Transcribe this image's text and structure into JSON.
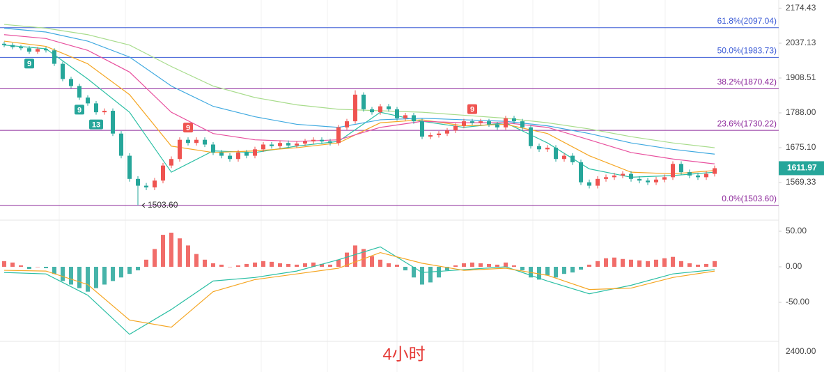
{
  "chart_data": [
    {
      "type": "candlestick",
      "log_scale": true,
      "ylim": [
        1464.5,
        2208.7
      ],
      "yticks": [
        {
          "value": 2174.43,
          "label": "2174.43"
        },
        {
          "value": 2037.13,
          "label": "2037.13"
        },
        {
          "value": 1908.51,
          "label": "1908.51"
        },
        {
          "value": 1788,
          "label": "1788.00"
        },
        {
          "value": 1675.1,
          "label": "1675.10"
        },
        {
          "value": 1569.33,
          "label": "1569.33"
        }
      ],
      "up_color": "#ef5350",
      "down_color": "#26a69a",
      "open": [
        2035,
        2030,
        2022,
        2018,
        2005,
        2015,
        2010,
        1960,
        1905,
        1880,
        1840,
        1820,
        1790,
        1795,
        1720,
        1650,
        1580,
        1560,
        1555,
        1575,
        1620,
        1640,
        1700,
        1690,
        1700,
        1685,
        1660,
        1650,
        1640,
        1660,
        1650,
        1670,
        1685,
        1680,
        1690,
        1682,
        1688,
        1695,
        1700,
        1695,
        1690,
        1740,
        1760,
        1850,
        1800,
        1790,
        1810,
        1800,
        1770,
        1780,
        1760,
        1710,
        1715,
        1720,
        1730,
        1745,
        1760,
        1755,
        1760,
        1750,
        1740,
        1770,
        1760,
        1740,
        1680,
        1670,
        1675,
        1640,
        1650,
        1630,
        1570,
        1560,
        1580,
        1585,
        1590,
        1595,
        1580,
        1575,
        1570,
        1578,
        1585,
        1625,
        1600,
        1590,
        1585,
        1595
      ],
      "high": [
        2043,
        2038,
        2030,
        2026,
        2023,
        2023,
        2018,
        1968,
        1913,
        1888,
        1848,
        1828,
        1803,
        1803,
        1728,
        1658,
        1588,
        1568,
        1583,
        1628,
        1648,
        1708,
        1708,
        1708,
        1708,
        1693,
        1668,
        1658,
        1668,
        1668,
        1678,
        1693,
        1693,
        1698,
        1698,
        1696,
        1703,
        1708,
        1708,
        1703,
        1748,
        1768,
        1865,
        1858,
        1808,
        1818,
        1818,
        1808,
        1788,
        1788,
        1768,
        1723,
        1728,
        1738,
        1753,
        1768,
        1768,
        1768,
        1768,
        1758,
        1778,
        1778,
        1768,
        1748,
        1688,
        1683,
        1683,
        1658,
        1658,
        1638,
        1578,
        1588,
        1593,
        1598,
        1603,
        1603,
        1588,
        1583,
        1586,
        1593,
        1633,
        1633,
        1608,
        1598,
        1603,
        1620
      ],
      "low": [
        2022,
        2014,
        2010,
        1997,
        1997,
        2002,
        1952,
        1897,
        1872,
        1832,
        1812,
        1782,
        1782,
        1712,
        1642,
        1572,
        1503.6,
        1547,
        1547,
        1567,
        1612,
        1632,
        1682,
        1682,
        1677,
        1652,
        1642,
        1632,
        1632,
        1642,
        1642,
        1662,
        1672,
        1672,
        1674,
        1674,
        1680,
        1687,
        1687,
        1682,
        1682,
        1732,
        1752,
        1792,
        1782,
        1782,
        1792,
        1762,
        1762,
        1752,
        1702,
        1702,
        1707,
        1712,
        1722,
        1737,
        1747,
        1747,
        1742,
        1732,
        1732,
        1752,
        1732,
        1672,
        1662,
        1662,
        1632,
        1632,
        1622,
        1562,
        1552,
        1552,
        1572,
        1577,
        1582,
        1572,
        1567,
        1562,
        1562,
        1570,
        1577,
        1592,
        1582,
        1577,
        1577,
        1587
      ],
      "close": [
        2030,
        2022,
        2018,
        2005,
        2015,
        2010,
        1960,
        1905,
        1880,
        1840,
        1820,
        1790,
        1795,
        1720,
        1650,
        1580,
        1560,
        1555,
        1575,
        1620,
        1640,
        1700,
        1690,
        1700,
        1685,
        1660,
        1650,
        1640,
        1660,
        1650,
        1670,
        1685,
        1680,
        1690,
        1682,
        1688,
        1695,
        1700,
        1695,
        1690,
        1740,
        1760,
        1850,
        1800,
        1790,
        1810,
        1800,
        1770,
        1780,
        1760,
        1710,
        1715,
        1720,
        1730,
        1745,
        1760,
        1755,
        1760,
        1750,
        1740,
        1770,
        1760,
        1740,
        1680,
        1670,
        1675,
        1640,
        1650,
        1630,
        1570,
        1560,
        1580,
        1585,
        1590,
        1595,
        1580,
        1575,
        1570,
        1578,
        1585,
        1625,
        1600,
        1590,
        1585,
        1595,
        1611.97
      ],
      "ma_x": [
        0,
        5,
        10,
        15,
        20,
        25,
        30,
        35,
        40,
        45,
        50,
        55,
        60,
        65,
        70,
        75,
        80,
        85
      ],
      "ma_series": [
        {
          "color": "#2bbfa4",
          "values": [
            2030,
            2016,
            1905,
            1790,
            1600,
            1665,
            1660,
            1680,
            1695,
            1790,
            1760,
            1740,
            1755,
            1690,
            1610,
            1585,
            1590,
            1600
          ]
        },
        {
          "color": "#f5a623",
          "values": [
            2045,
            2025,
            1960,
            1850,
            1680,
            1660,
            1665,
            1675,
            1690,
            1755,
            1765,
            1745,
            1750,
            1720,
            1650,
            1600,
            1595,
            1605
          ]
        },
        {
          "color": "#e8509e",
          "values": [
            2070,
            2055,
            2010,
            1930,
            1790,
            1720,
            1700,
            1695,
            1700,
            1740,
            1760,
            1755,
            1755,
            1740,
            1700,
            1660,
            1640,
            1625
          ]
        },
        {
          "color": "#3fa9e0",
          "values": [
            2095,
            2080,
            2045,
            1985,
            1880,
            1810,
            1775,
            1750,
            1740,
            1765,
            1770,
            1765,
            1760,
            1745,
            1720,
            1690,
            1670,
            1655
          ]
        },
        {
          "color": "#a8dc8c",
          "values": [
            2110,
            2095,
            2070,
            2030,
            1950,
            1880,
            1840,
            1815,
            1800,
            1795,
            1790,
            1780,
            1770,
            1755,
            1735,
            1710,
            1690,
            1675
          ]
        }
      ],
      "fib_levels": [
        {
          "value": 2097.04,
          "label": "61.8%(2097.04)",
          "color": "#3b5bd6"
        },
        {
          "value": 1983.73,
          "label": "50.0%(1983.73)",
          "color": "#3b5bd6"
        },
        {
          "value": 1870.42,
          "label": "38.2%(1870.42)",
          "color": "#8e2a9c"
        },
        {
          "value": 1730.22,
          "label": "23.6%(1730.22)",
          "color": "#8e2a9c"
        },
        {
          "value": 1503.6,
          "label": "0.0%(1503.60)",
          "color": "#8e2a9c"
        }
      ],
      "markers": [
        {
          "index": 3,
          "label": "9",
          "color": "#26a69a"
        },
        {
          "index": 9,
          "label": "9",
          "color": "#26a69a"
        },
        {
          "index": 11,
          "label": "13",
          "color": "#26a69a"
        },
        {
          "index": 22,
          "label": "9",
          "color": "#ef5350"
        },
        {
          "index": 56,
          "label": "9",
          "color": "#ef5350"
        }
      ],
      "low_marker": {
        "value": 1503.6,
        "label": "1503.60"
      }
    },
    {
      "type": "macd",
      "ylim": [
        -104.9,
        63.7
      ],
      "yticks": [
        {
          "value": 50,
          "label": "50.00"
        },
        {
          "value": 0,
          "label": "0.00"
        },
        {
          "value": -50,
          "label": "-50.00"
        }
      ],
      "up_color": "#ef5350",
      "down_color": "#26a69a",
      "histogram": [
        8,
        6,
        2,
        -3,
        0,
        -2,
        -10,
        -20,
        -25,
        -30,
        -35,
        -30,
        -25,
        -20,
        -15,
        -10,
        -5,
        10,
        25,
        45,
        48,
        40,
        30,
        18,
        10,
        5,
        3,
        0,
        2,
        4,
        6,
        8,
        7,
        5,
        4,
        3,
        5,
        6,
        4,
        3,
        10,
        20,
        30,
        25,
        15,
        10,
        5,
        3,
        -5,
        -15,
        -25,
        -22,
        -15,
        -5,
        2,
        5,
        6,
        5,
        4,
        3,
        6,
        2,
        -5,
        -15,
        -18,
        -12,
        -15,
        -10,
        -8,
        -4,
        3,
        8,
        12,
        13,
        11,
        10,
        9,
        8,
        10,
        12,
        14,
        8,
        5,
        3,
        4,
        8
      ],
      "x": [
        0,
        5,
        10,
        15,
        20,
        25,
        30,
        35,
        40,
        45,
        50,
        55,
        60,
        65,
        70,
        75,
        80,
        85
      ],
      "lines": [
        {
          "color": "#2bbfa4",
          "values": [
            -8,
            -10,
            -40,
            -95,
            -60,
            -20,
            -15,
            -6,
            10,
            28,
            -8,
            -4,
            0,
            -20,
            -38,
            -26,
            -10,
            -4
          ]
        },
        {
          "color": "#f5a623",
          "values": [
            -5,
            -6,
            -25,
            -75,
            -85,
            -35,
            -18,
            -10,
            -2,
            20,
            5,
            -5,
            -2,
            -12,
            -32,
            -30,
            -15,
            -6
          ]
        }
      ]
    }
  ],
  "bottom_axis_label": "2400.00",
  "caption": "4小时"
}
